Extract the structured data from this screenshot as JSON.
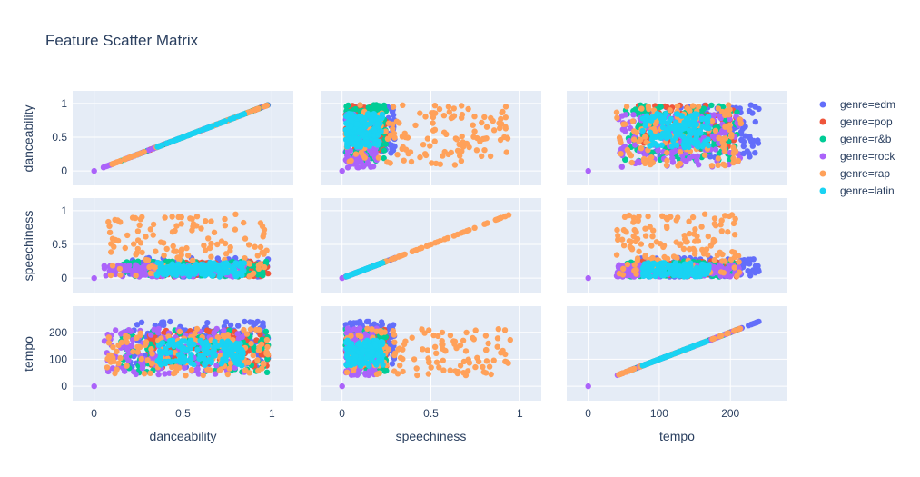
{
  "chart_data": {
    "type": "scatter",
    "title": "Feature Scatter Matrix",
    "dimensions": [
      "danceability",
      "speechiness",
      "tempo"
    ],
    "ranges": {
      "danceability": [
        0,
        1
      ],
      "speechiness": [
        0,
        1
      ],
      "tempo": [
        0,
        250
      ]
    },
    "ticks": {
      "danceability": {
        "y": [
          "0",
          "0.5",
          "1"
        ],
        "yvals": [
          0,
          0.5,
          1
        ],
        "x": [
          "0",
          "0.5",
          "1"
        ],
        "xvals": [
          0,
          0.5,
          1
        ]
      },
      "speechiness": {
        "y": [
          "0",
          "0.5",
          "1"
        ],
        "yvals": [
          0,
          0.5,
          1
        ],
        "x": [
          "0",
          "0.5",
          "1"
        ],
        "xvals": [
          0,
          0.5,
          1
        ]
      },
      "tempo": {
        "y": [
          "0",
          "100",
          "200"
        ],
        "yvals": [
          0,
          100,
          200
        ],
        "x": [
          "0",
          "100",
          "200"
        ],
        "xvals": [
          0,
          100,
          200
        ]
      }
    },
    "legend_placement": "right",
    "grid": true,
    "series": [
      {
        "name": "genre=edm",
        "color": "#636efa",
        "clusters": {
          "danceability": [
            0.2,
            0.98
          ],
          "speechiness": [
            0.02,
            0.3
          ],
          "tempo": [
            70,
            240
          ]
        },
        "extra_points": [
          [
            0.92,
            0.1,
            240
          ],
          [
            0.95,
            0.08,
            235
          ]
        ]
      },
      {
        "name": "genre=pop",
        "color": "#ef553b",
        "clusters": {
          "danceability": [
            0.3,
            0.98
          ],
          "speechiness": [
            0.02,
            0.25
          ],
          "tempo": [
            70,
            210
          ]
        },
        "extra_points": []
      },
      {
        "name": "genre=r&b",
        "color": "#00cc96",
        "clusters": {
          "danceability": [
            0.15,
            0.98
          ],
          "speechiness": [
            0.02,
            0.25
          ],
          "tempo": [
            50,
            210
          ]
        },
        "extra_points": []
      },
      {
        "name": "genre=rock",
        "color": "#ab63fa",
        "clusters": {
          "danceability": [
            0.05,
            0.85
          ],
          "speechiness": [
            0.02,
            0.2
          ],
          "tempo": [
            40,
            215
          ]
        },
        "extra_points": [
          [
            0,
            0,
            0
          ]
        ]
      },
      {
        "name": "genre=rap",
        "color": "#ffa15a",
        "clusters": {
          "danceability": [
            0.07,
            0.98
          ],
          "speechiness": [
            0.02,
            0.95
          ],
          "tempo": [
            40,
            215
          ]
        },
        "extra_points": []
      },
      {
        "name": "genre=latin",
        "color": "#19d3f3",
        "clusters": {
          "danceability": [
            0.35,
            0.85
          ],
          "speechiness": [
            0.02,
            0.23
          ],
          "tempo": [
            75,
            170
          ]
        },
        "extra_points": []
      }
    ]
  }
}
